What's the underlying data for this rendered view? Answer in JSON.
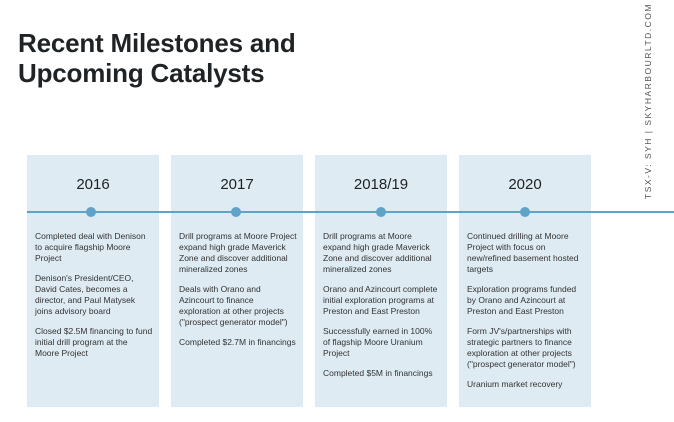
{
  "title": {
    "line1": "Recent Milestones and",
    "line2": "Upcoming Catalysts"
  },
  "side_label": "TSX-V: SYH | SKYHARBOURLTD.COM",
  "colors": {
    "column_bg": "#deebf3",
    "timeline": "#5fa3c8",
    "title": "#1f2326"
  },
  "timeline": [
    {
      "year": "2016",
      "items": [
        "Completed deal with Denison to acquire flagship Moore Project",
        "Denison's President/CEO, David Cates, becomes a director, and Paul Matysek joins advisory board",
        "Closed $2.5M financing to fund initial drill program at the Moore Project"
      ]
    },
    {
      "year": "2017",
      "items": [
        "Drill programs at Moore Project expand high grade Maverick Zone and discover additional mineralized zones",
        "Deals with Orano and Azincourt to finance exploration at other projects (\"prospect generator model\")",
        "Completed $2.7M in financings"
      ]
    },
    {
      "year": "2018/19",
      "items": [
        "Drill programs at Moore expand high grade Maverick Zone and discover additional mineralized zones",
        "Orano and Azincourt complete initial exploration programs at Preston and East Preston",
        "Successfully earned in 100% of flagship Moore Uranium Project",
        "Completed $5M in financings"
      ]
    },
    {
      "year": "2020",
      "items": [
        "Continued drilling at Moore Project with focus on new/refined basement hosted targets",
        "Exploration programs funded by Orano and Azincourt at Preston and East Preston",
        "Form JV's/partnerships with strategic partners to finance exploration at other projects (\"prospect generator model\")",
        "Uranium market recovery"
      ]
    }
  ]
}
